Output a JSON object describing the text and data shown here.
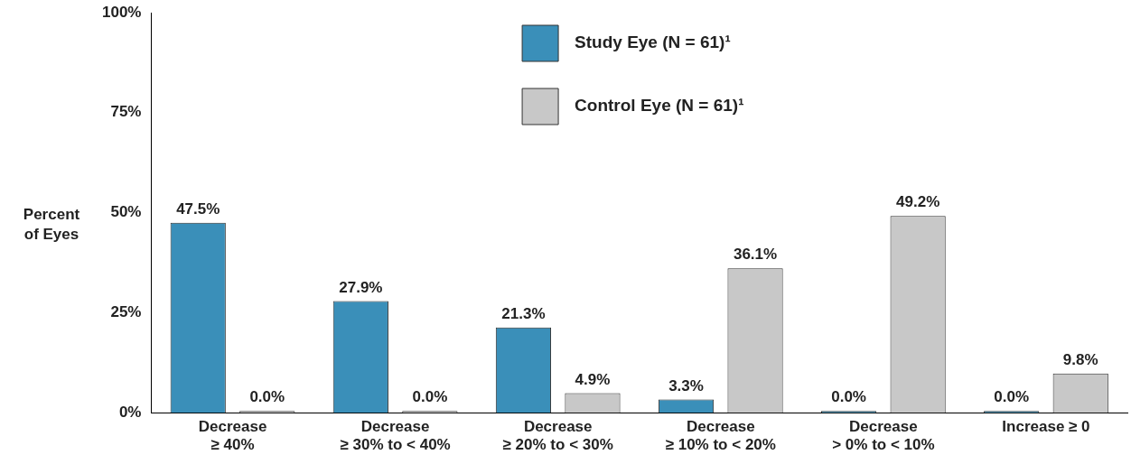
{
  "chart_data": {
    "type": "bar",
    "ylabel": "Percent\nof Eyes",
    "categories": [
      "Decrease\n≥ 40%",
      "Decrease\n≥ 30% to < 40%",
      "Decrease\n≥ 20% to < 30%",
      "Decrease\n≥ 10% to < 20%",
      "Decrease\n> 0% to < 10%",
      "Increase ≥ 0"
    ],
    "series": [
      {
        "name": "Study Eye (N = 61)¹",
        "color": "#3a8fb9",
        "values": [
          47.5,
          27.9,
          21.3,
          3.3,
          0.0,
          0.0
        ],
        "value_labels": [
          "47.5%",
          "27.9%",
          "21.3%",
          "3.3%",
          "0.0%",
          "0.0%"
        ]
      },
      {
        "name": "Control Eye (N = 61)¹",
        "color": "#c8c8c8",
        "values": [
          0.0,
          0.0,
          4.9,
          36.1,
          49.2,
          9.8
        ],
        "value_labels": [
          "0.0%",
          "0.0%",
          "4.9%",
          "36.1%",
          "49.2%",
          "9.8%"
        ]
      }
    ],
    "ylim": [
      0,
      100
    ],
    "yticks": [
      {
        "value": 0,
        "label": "0%"
      },
      {
        "value": 25,
        "label": "25%"
      },
      {
        "value": 50,
        "label": "50%"
      },
      {
        "value": 75,
        "label": "75%"
      },
      {
        "value": 100,
        "label": "100%"
      }
    ],
    "grid": false,
    "legend": "top"
  }
}
